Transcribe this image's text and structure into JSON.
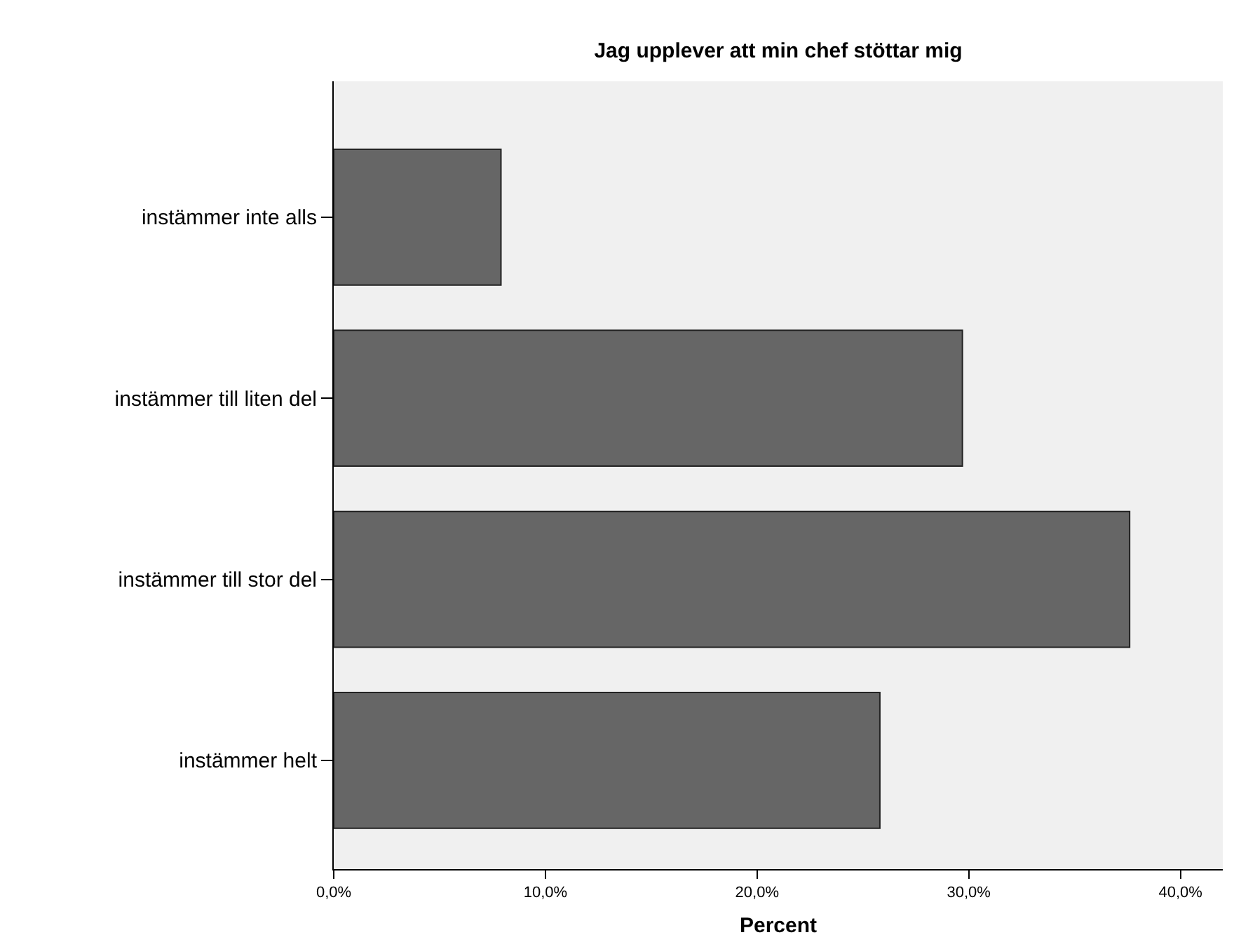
{
  "chart_data": {
    "type": "bar",
    "orientation": "horizontal",
    "title": "Jag upplever att min chef stöttar mig",
    "xlabel": "Percent",
    "categories": [
      "instämmer inte alls",
      "instämmer till liten del",
      "instämmer till stor del",
      "instämmer helt"
    ],
    "values": [
      7.9,
      29.7,
      37.6,
      25.8
    ],
    "color": "#666666",
    "xlim": [
      0,
      42
    ],
    "xticks": [
      {
        "value": 0,
        "label": "0,0%"
      },
      {
        "value": 10,
        "label": "10,0%"
      },
      {
        "value": 20,
        "label": "20,0%"
      },
      {
        "value": 30,
        "label": "30,0%"
      },
      {
        "value": 40,
        "label": "40,0%"
      }
    ],
    "grid": false
  }
}
